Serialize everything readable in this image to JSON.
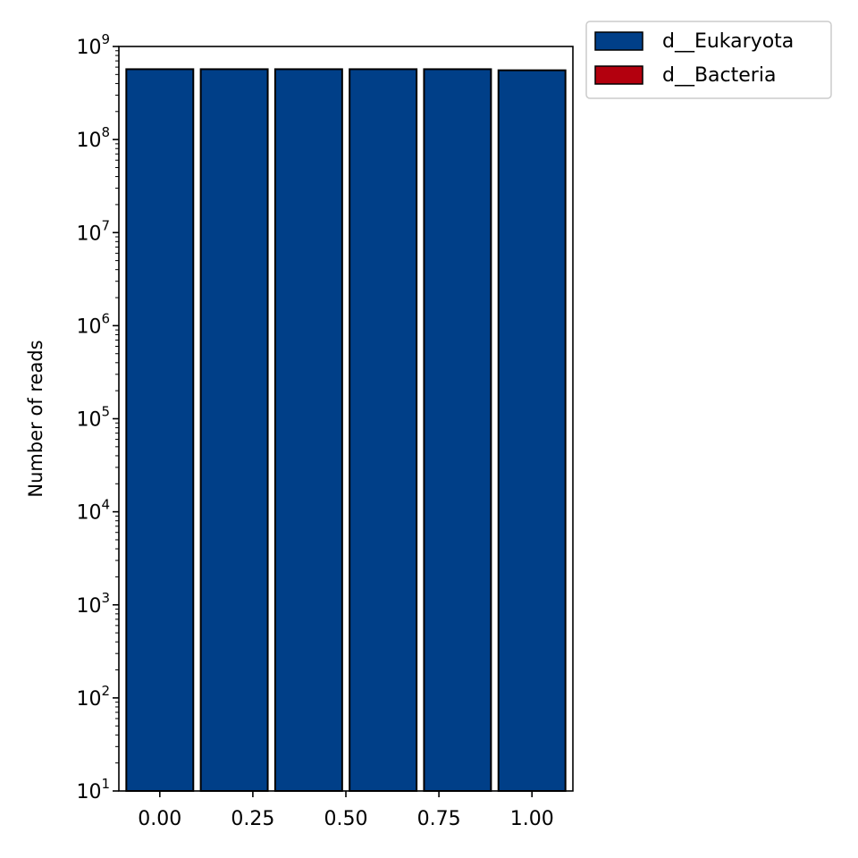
{
  "chart_data": {
    "type": "bar",
    "title": "",
    "xlabel": "",
    "ylabel": "Number of reads",
    "yscale": "log",
    "ylim": [
      10,
      1000000000
    ],
    "xlim": [
      -0.11,
      1.11
    ],
    "bar_width": 0.18,
    "x_ticks": [
      {
        "value": 0.0,
        "label": "0.00"
      },
      {
        "value": 0.25,
        "label": "0.25"
      },
      {
        "value": 0.5,
        "label": "0.50"
      },
      {
        "value": 0.75,
        "label": "0.75"
      },
      {
        "value": 1.0,
        "label": "1.00"
      }
    ],
    "y_ticks": [
      {
        "exp": 1,
        "base": "10",
        "sup": "1"
      },
      {
        "exp": 2,
        "base": "10",
        "sup": "2"
      },
      {
        "exp": 3,
        "base": "10",
        "sup": "3"
      },
      {
        "exp": 4,
        "base": "10",
        "sup": "4"
      },
      {
        "exp": 5,
        "base": "10",
        "sup": "5"
      },
      {
        "exp": 6,
        "base": "10",
        "sup": "6"
      },
      {
        "exp": 7,
        "base": "10",
        "sup": "7"
      },
      {
        "exp": 8,
        "base": "10",
        "sup": "8"
      },
      {
        "exp": 9,
        "base": "10",
        "sup": "9"
      }
    ],
    "x": [
      0.0,
      0.2,
      0.4,
      0.6,
      0.8,
      1.0
    ],
    "series": [
      {
        "name": "d__Eukaryota",
        "color": "#003f88",
        "values": [
          570000000,
          570000000,
          570000000,
          570000000,
          570000000,
          555000000
        ]
      },
      {
        "name": "d__Bacteria",
        "color": "#b3000e",
        "values": [
          0,
          0,
          0,
          0,
          0,
          0
        ]
      }
    ],
    "legend_position": "outside top-right",
    "grid": false
  }
}
